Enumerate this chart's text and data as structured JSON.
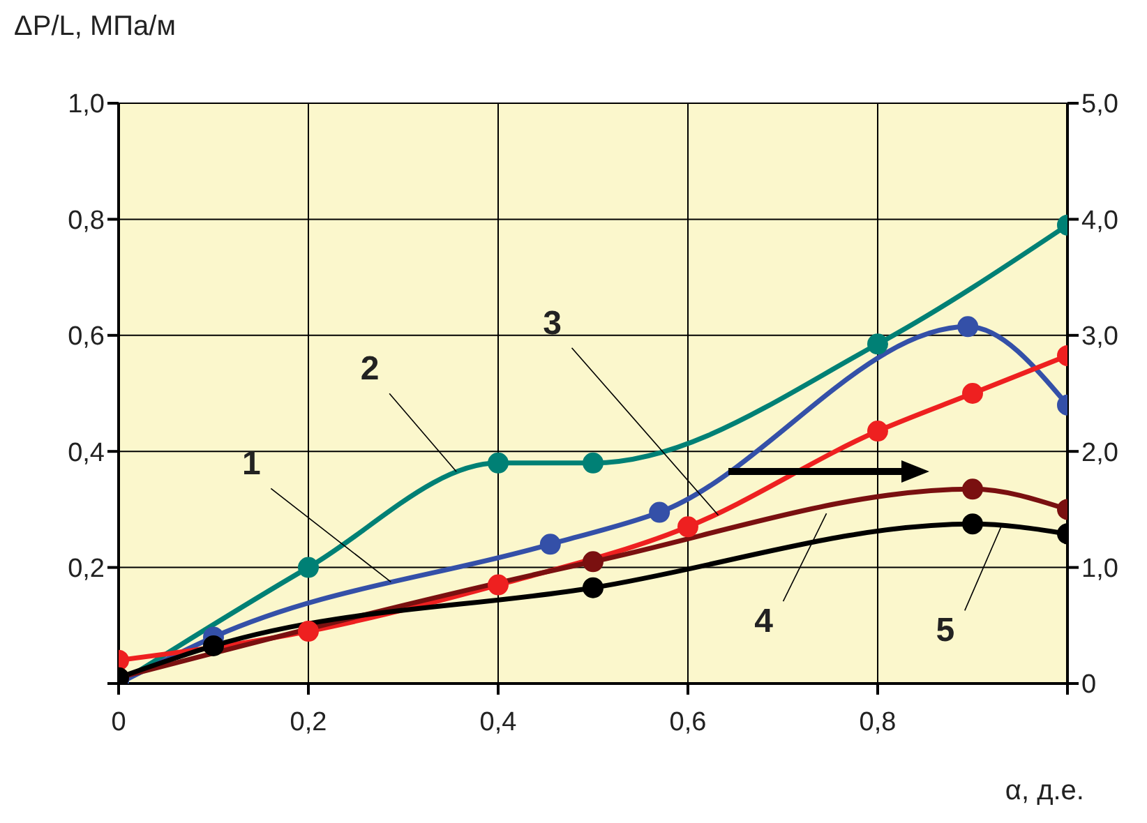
{
  "chart_data": {
    "type": "line",
    "ylabel": "ΔP/L, МПа/м",
    "xlabel": "α, д.е.",
    "xlim": [
      0,
      1
    ],
    "xticks": [
      {
        "value": 0,
        "label": "0"
      },
      {
        "value": 0.2,
        "label": "0,2"
      },
      {
        "value": 0.4,
        "label": "0,4"
      },
      {
        "value": 0.6,
        "label": "0,6"
      },
      {
        "value": 0.8,
        "label": "0,8"
      },
      {
        "value": 1,
        "label": null
      }
    ],
    "ylim": [
      0,
      1
    ],
    "yticks": [
      {
        "value": 0,
        "label": null
      },
      {
        "value": 0.2,
        "label": "0,2"
      },
      {
        "value": 0.4,
        "label": "0,4"
      },
      {
        "value": 0.6,
        "label": "0,6"
      },
      {
        "value": 0.8,
        "label": "0,8"
      },
      {
        "value": 1,
        "label": "1,0"
      }
    ],
    "y2lim": [
      0,
      5
    ],
    "y2ticks": [
      {
        "value": 0,
        "label": "0"
      },
      {
        "value": 1,
        "label": "1,0"
      },
      {
        "value": 2,
        "label": "2,0"
      },
      {
        "value": 3,
        "label": "3,0"
      },
      {
        "value": 4,
        "label": "4,0"
      },
      {
        "value": 5,
        "label": "5,0"
      }
    ],
    "grid": true,
    "marker": "circle",
    "line_style": "solid",
    "legend": false,
    "series": [
      {
        "color": "#008075",
        "x": [
          0,
          0.2,
          0.4,
          0.5,
          0.8,
          1
        ],
        "values": [
          0,
          0.2,
          0.38,
          0.38,
          0.585,
          0.79
        ]
      },
      {
        "color": "#3450a8",
        "x": [
          0,
          0.1,
          0.455,
          0.57,
          0.895,
          1
        ],
        "values": [
          0,
          0.08,
          0.24,
          0.295,
          0.615,
          0.48
        ]
      },
      {
        "color": "#ee2020",
        "x": [
          0,
          0.2,
          0.4,
          0.6,
          0.8,
          0.9,
          1
        ],
        "values": [
          0.04,
          0.09,
          0.17,
          0.27,
          0.435,
          0.5,
          0.565
        ]
      },
      {
        "color": "#7a1010",
        "x": [
          0,
          0.5,
          0.9,
          1
        ],
        "values": [
          0.01,
          0.21,
          0.335,
          0.3
        ]
      },
      {
        "color": "#000000",
        "x": [
          0,
          0.1,
          0.5,
          0.9,
          1
        ],
        "values": [
          0.01,
          0.065,
          0.165,
          0.275,
          0.258
        ]
      }
    ],
    "annotations": [
      {
        "text": "1",
        "x": 0.287,
        "y": 0.175
      },
      {
        "text": "2",
        "x": 0.356,
        "y": 0.365
      },
      {
        "text": "3",
        "x": 0.632,
        "y": 0.29
      },
      {
        "text": "4",
        "x": 0.746,
        "y": 0.293
      },
      {
        "text": "5",
        "x": 0.93,
        "y": 0.27
      }
    ]
  }
}
